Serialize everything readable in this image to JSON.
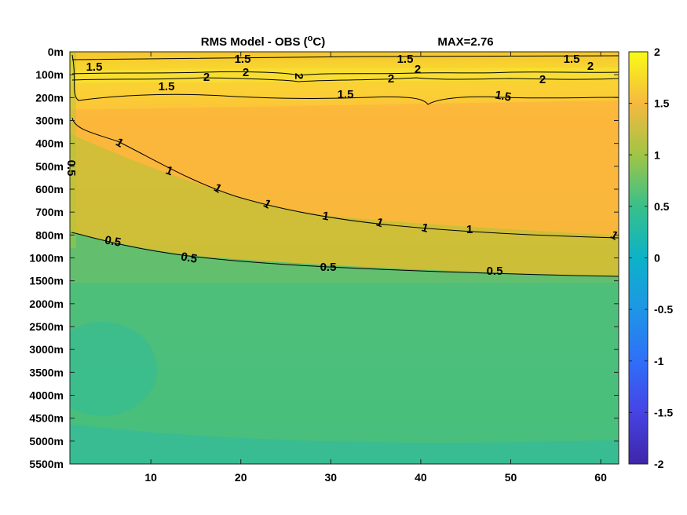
{
  "chart_data": {
    "type": "heatmap",
    "title_prefix": "RMS Model - OBS (",
    "title_sup": "o",
    "title_suffix": "C)",
    "max_label": "MAX=2.76",
    "x_ticks": [
      10,
      20,
      30,
      40,
      50,
      60
    ],
    "x_range": [
      1,
      62
    ],
    "y_ticks": [
      "0m",
      "100m",
      "200m",
      "300m",
      "400m",
      "500m",
      "600m",
      "700m",
      "800m",
      "1000m",
      "1500m",
      "2000m",
      "2500m",
      "3000m",
      "3500m",
      "4000m",
      "4500m",
      "5000m",
      "5500m"
    ],
    "colorbar": {
      "range": [
        -2,
        2
      ],
      "ticks": [
        "2",
        "1.5",
        "1",
        "0.5",
        "0",
        "-0.5",
        "-1",
        "-1.5",
        "-2"
      ]
    },
    "contours": [
      {
        "level": 2,
        "labels": [
          "2",
          "2",
          "2",
          "2",
          "2",
          "2",
          "2"
        ]
      },
      {
        "level": 1.5,
        "labels": [
          "1.5",
          "1.5",
          "1.5",
          "1.5",
          "1.5",
          "1.5",
          "1.5"
        ]
      },
      {
        "level": 1,
        "labels": [
          "1",
          "1",
          "1",
          "1",
          "1",
          "1",
          "1",
          "1",
          "1"
        ]
      },
      {
        "level": 0.5,
        "labels": [
          "0.5",
          "0.5",
          "0.5",
          "0.5",
          "0.5",
          "0.5"
        ]
      }
    ]
  }
}
